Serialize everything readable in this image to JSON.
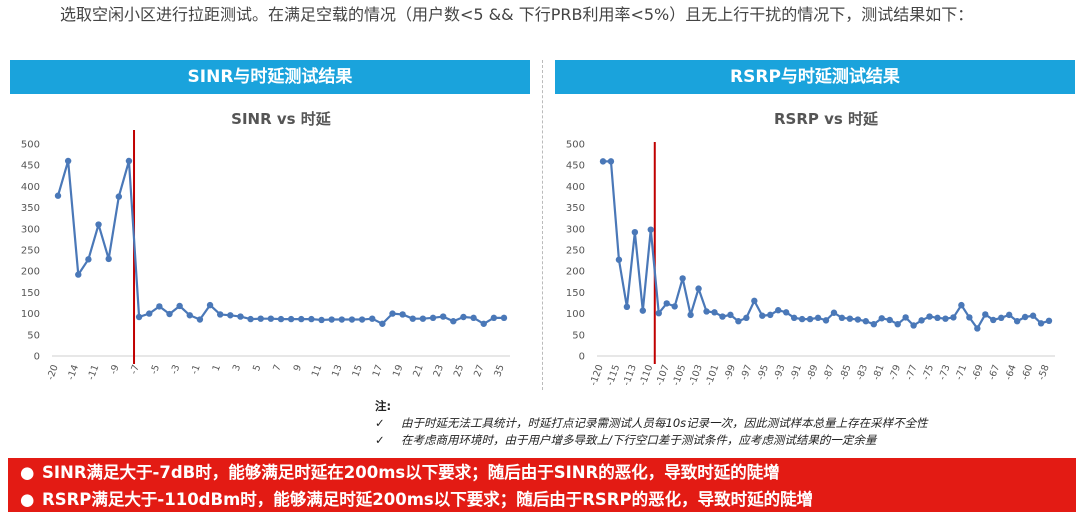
{
  "intro": "选取空闲小区进行拉距测试。在满足空载的情况（用户数<5 && 下行PRB利用率<5%）且无上行干扰的情况下，测试结果如下：",
  "banners": {
    "left": "SINR与时延测试结果",
    "right": "RSRP与时延测试结果"
  },
  "chart_data": [
    {
      "type": "line",
      "title": "SINR vs 时延",
      "xlabel": "",
      "ylabel": "",
      "ylim": [
        0,
        500
      ],
      "yticks": [
        "0",
        "50",
        "100",
        "150",
        "200",
        "250",
        "300",
        "350",
        "400",
        "450",
        "500"
      ],
      "xticklabels": [
        "-20",
        "-14",
        "-11",
        "-9",
        "-7",
        "-5",
        "-3",
        "-1",
        "1",
        "3",
        "5",
        "7",
        "9",
        "11",
        "13",
        "15",
        "17",
        "19",
        "21",
        "23",
        "25",
        "27",
        "35"
      ],
      "values": [
        378,
        460,
        192,
        228,
        310,
        229,
        376,
        460,
        92,
        100,
        117,
        99,
        118,
        96,
        86,
        120,
        98,
        96,
        93,
        87,
        88,
        88,
        87,
        87,
        87,
        87,
        85,
        86,
        86,
        86,
        86,
        88,
        76,
        100,
        98,
        88,
        88,
        90,
        93,
        82,
        92,
        90,
        76,
        90,
        90
      ],
      "marker_line_after_index": 7,
      "series_color": "#4a78b8",
      "marker_color": "#c00000"
    },
    {
      "type": "line",
      "title": "RSRP vs 时延",
      "xlabel": "",
      "ylabel": "",
      "ylim": [
        0,
        500
      ],
      "yticks": [
        "0",
        "50",
        "100",
        "150",
        "200",
        "250",
        "300",
        "350",
        "400",
        "450",
        "500"
      ],
      "xticklabels": [
        "-120",
        "-115",
        "-113",
        "-110",
        "-107",
        "-105",
        "-103",
        "-101",
        "-99",
        "-97",
        "-95",
        "-93",
        "-91",
        "-89",
        "-87",
        "-85",
        "-83",
        "-81",
        "-79",
        "-77",
        "-75",
        "-73",
        "-71",
        "-69",
        "-67",
        "-64",
        "-60",
        "-58"
      ],
      "values": [
        459,
        459,
        227,
        116,
        292,
        107,
        298,
        101,
        124,
        117,
        183,
        97,
        159,
        105,
        103,
        93,
        97,
        82,
        90,
        130,
        95,
        97,
        108,
        103,
        90,
        87,
        87,
        90,
        84,
        102,
        90,
        88,
        86,
        82,
        75,
        89,
        85,
        75,
        91,
        72,
        84,
        93,
        90,
        88,
        91,
        120,
        91,
        65,
        98,
        85,
        90,
        97,
        82,
        92,
        95,
        77,
        83
      ],
      "marker_line_after_index": 6,
      "series_color": "#4a78b8",
      "marker_color": "#c00000"
    }
  ],
  "notes": {
    "title": "注:",
    "items": [
      "由于时延无法工具统计，时延打点记录需测试人员每10s记录一次，因此测试样本总量上存在采样不全性",
      "在考虑商用环境时，由于用户增多导致上/下行空口差于测试条件，应考虑测试结果的一定余量"
    ],
    "check_symbol": "✓"
  },
  "summary": [
    "SINR满足大于-7dB时，能够满足时延在200ms以下要求；随后由于SINR的恶化，导致时延的陡增",
    "RSRP满足大于-110dBm时，能够满足时延200ms以下要求；随后由于RSRP的恶化，导致时延的陡增"
  ],
  "bullet": "●"
}
